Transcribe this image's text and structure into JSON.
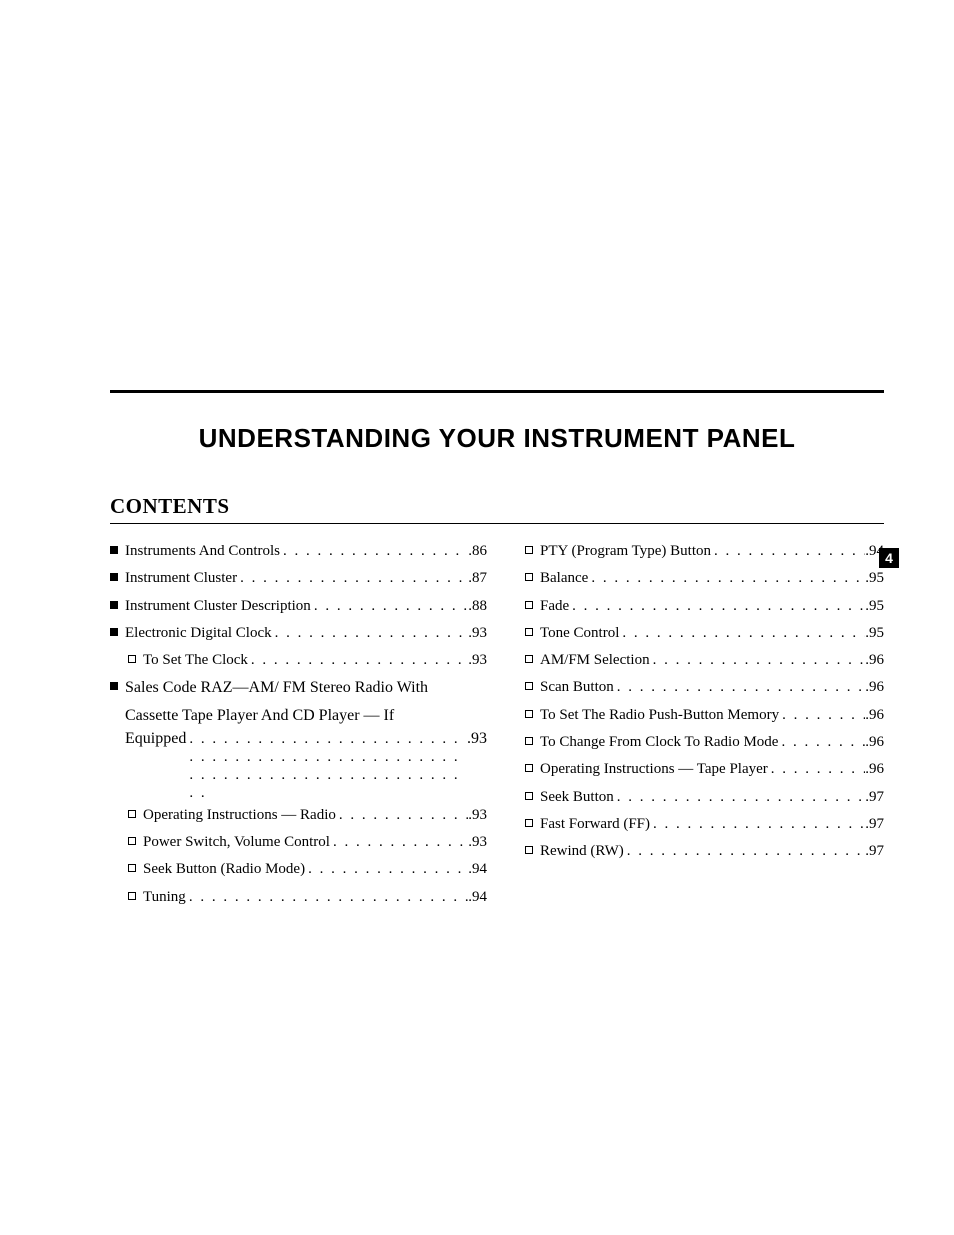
{
  "title": "UNDERSTANDING YOUR INSTRUMENT PANEL",
  "contents_heading": "CONTENTS",
  "side_tab": "4",
  "left": [
    {
      "type": "top",
      "label": "Instruments And Controls",
      "page": "86"
    },
    {
      "type": "top",
      "label": "Instrument Cluster",
      "page": "87"
    },
    {
      "type": "top",
      "label": "Instrument Cluster Description",
      "page": "88"
    },
    {
      "type": "top",
      "label": "Electronic Digital Clock",
      "page": "93"
    },
    {
      "type": "sub",
      "label": "To Set The Clock",
      "page": "93"
    },
    {
      "type": "top",
      "multiline": true,
      "lines": [
        "Sales Code RAZ—AM/ FM Stereo Radio With",
        "Cassette Tape Player And CD Player — If"
      ],
      "lastline": "Equipped",
      "page": "93"
    },
    {
      "type": "sub",
      "label": "Operating Instructions — Radio",
      "page": "93"
    },
    {
      "type": "sub",
      "label": "Power Switch, Volume Control",
      "page": "93"
    },
    {
      "type": "sub",
      "label": "Seek Button (Radio Mode)",
      "page": "94"
    },
    {
      "type": "sub",
      "label": "Tuning",
      "page": "94"
    }
  ],
  "right": [
    {
      "type": "sub",
      "label": "PTY (Program Type) Button",
      "page": "94"
    },
    {
      "type": "sub",
      "label": "Balance",
      "page": "95"
    },
    {
      "type": "sub",
      "label": "Fade",
      "page": "95"
    },
    {
      "type": "sub",
      "label": "Tone Control",
      "page": "95"
    },
    {
      "type": "sub",
      "label": "AM/FM Selection",
      "page": "96"
    },
    {
      "type": "sub",
      "label": "Scan Button",
      "page": "96"
    },
    {
      "type": "sub",
      "label": "To Set The Radio Push-Button Memory",
      "page": "96"
    },
    {
      "type": "sub",
      "label": "To Change From Clock To Radio Mode",
      "page": "96"
    },
    {
      "type": "sub",
      "label": "Operating Instructions — Tape Player",
      "page": "96"
    },
    {
      "type": "sub",
      "label": "Seek Button",
      "page": "97"
    },
    {
      "type": "sub",
      "label": "Fast Forward (FF)",
      "page": "97"
    },
    {
      "type": "sub",
      "label": "Rewind (RW)",
      "page": "97"
    }
  ]
}
